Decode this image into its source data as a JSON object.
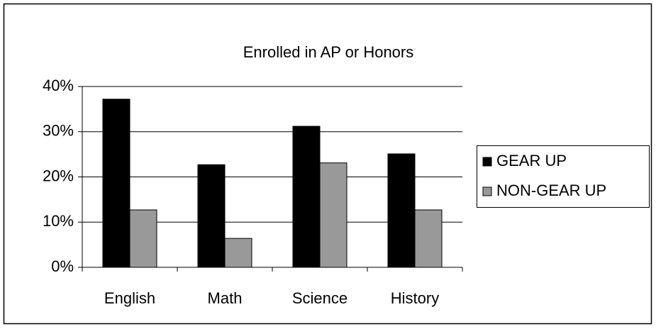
{
  "chart_data": {
    "type": "bar",
    "title": "Enrolled in AP or Honors",
    "categories": [
      "English",
      "Math",
      "Science",
      "History"
    ],
    "series": [
      {
        "name": "GEAR UP",
        "color": "#000000",
        "values": [
          37.2,
          22.7,
          31.2,
          25.1
        ]
      },
      {
        "name": "NON-GEAR UP",
        "color": "#999999",
        "values": [
          12.7,
          6.4,
          23.1,
          12.7
        ]
      }
    ],
    "ylim": [
      0,
      40
    ],
    "yticks": [
      {
        "value": 0,
        "label": "0%"
      },
      {
        "value": 10,
        "label": "10%"
      },
      {
        "value": 20,
        "label": "20%"
      },
      {
        "value": 30,
        "label": "30%"
      },
      {
        "value": 40,
        "label": "40%"
      }
    ],
    "grid": true,
    "legend": "right"
  }
}
